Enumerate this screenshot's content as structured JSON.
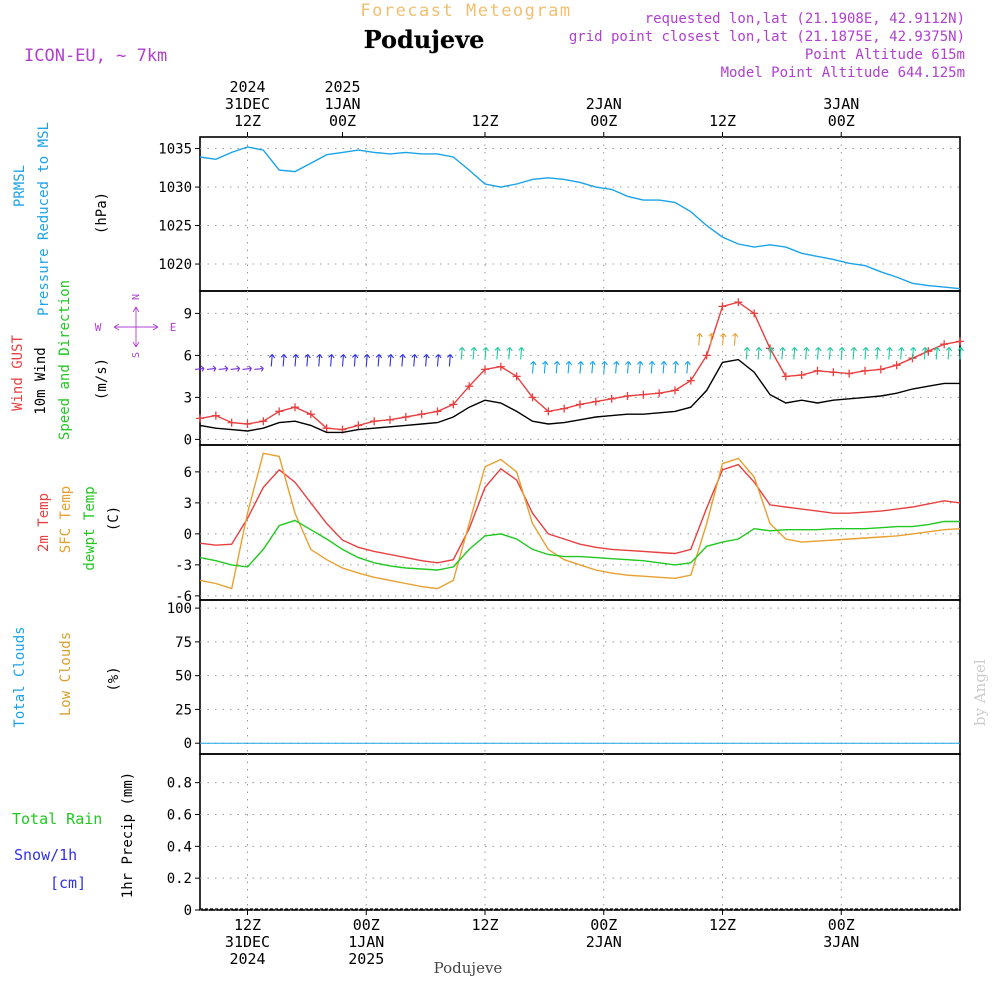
{
  "header": {
    "title_top": "Forecast Meteogram",
    "location": "Podujeve",
    "model": "ICON-EU, ~ 7km",
    "requested": "requested lon,lat (21.1908E, 42.9112N)",
    "gridpoint": "grid point closest lon,lat (21.1875E, 42.9375N)",
    "point_alt": "Point Altitude 615m",
    "model_alt": "Model Point Altitude 644.125m",
    "bottom_label": "Podujeve",
    "watermark": "by Angel"
  },
  "colors": {
    "pressure": "#1aa3e8",
    "gust": "#e84040",
    "wind": "#000000",
    "temp2m": "#e84040",
    "sfc": "#e8a030",
    "dewpt": "#20c820",
    "cloud_total": "#1aa3e8",
    "cloud_low": "#d8a030",
    "rain": "#20c820",
    "snow": "#3030e8",
    "purple": "#b040d0"
  },
  "time_axis": {
    "hours_range": [
      -6,
      90
    ],
    "top_labels": [
      {
        "h": 0,
        "lines": [
          "2024",
          "31DEC",
          "12Z"
        ]
      },
      {
        "h": 12,
        "lines": [
          "2025",
          "1JAN",
          "00Z"
        ]
      },
      {
        "h": 30,
        "lines": [
          "",
          "",
          "12Z"
        ]
      },
      {
        "h": 45,
        "lines": [
          "",
          "2JAN",
          "00Z"
        ]
      },
      {
        "h": 60,
        "lines": [
          "",
          "",
          "12Z"
        ]
      },
      {
        "h": 75,
        "lines": [
          "",
          "3JAN",
          "00Z"
        ]
      }
    ],
    "bottom_labels": [
      {
        "h": 0,
        "lines": [
          "12Z",
          "31DEC",
          "2024"
        ]
      },
      {
        "h": 15,
        "lines": [
          "00Z",
          "1JAN",
          "2025"
        ]
      },
      {
        "h": 30,
        "lines": [
          "12Z"
        ]
      },
      {
        "h": 45,
        "lines": [
          "00Z",
          "2JAN"
        ]
      },
      {
        "h": 60,
        "lines": [
          "12Z"
        ]
      },
      {
        "h": 75,
        "lines": [
          "00Z",
          "3JAN"
        ]
      }
    ]
  },
  "chart_data": [
    {
      "type": "line",
      "panel": "pressure",
      "ylabel_lines": [
        "PRMSL",
        "Pressure Reduced to MSL"
      ],
      "unit": "(hPa)",
      "ylim": [
        1016.5,
        1036.5
      ],
      "yticks": [
        1020,
        1025,
        1030,
        1035
      ],
      "grid": true,
      "series": [
        {
          "name": "PRMSL",
          "x": [
            -6,
            -4,
            -2,
            0,
            2,
            4,
            6,
            8,
            10,
            12,
            14,
            16,
            18,
            20,
            22,
            24,
            26,
            28,
            30,
            32,
            34,
            36,
            38,
            40,
            42,
            44,
            46,
            48,
            50,
            52,
            54,
            56,
            58,
            60,
            62,
            64,
            66,
            68,
            70,
            72,
            74,
            76,
            78,
            80,
            82,
            84,
            86,
            88,
            90
          ],
          "values": [
            1033.9,
            1033.6,
            1034.5,
            1035.2,
            1034.8,
            1032.2,
            1032.0,
            1033.1,
            1034.2,
            1034.5,
            1034.8,
            1034.5,
            1034.3,
            1034.5,
            1034.3,
            1034.3,
            1033.9,
            1032.2,
            1030.4,
            1030.0,
            1030.4,
            1031.0,
            1031.2,
            1031.0,
            1030.6,
            1030.0,
            1029.7,
            1028.8,
            1028.3,
            1028.3,
            1028.0,
            1026.8,
            1025.0,
            1023.5,
            1022.6,
            1022.2,
            1022.5,
            1022.2,
            1021.4,
            1021.0,
            1020.6,
            1020.1,
            1019.8,
            1019.0,
            1018.3,
            1017.5,
            1017.2,
            1017.0,
            1016.8
          ]
        }
      ]
    },
    {
      "type": "line",
      "panel": "wind",
      "ylabel_lines": [
        "Wind GUST",
        "10m Wind",
        "Speed and Direction"
      ],
      "unit": "(m/s)",
      "compass": {
        "n": "N",
        "s": "S",
        "w": "W",
        "e": "E"
      },
      "ylim": [
        -0.4,
        10.6
      ],
      "yticks": [
        0,
        3,
        6,
        9
      ],
      "grid": true,
      "series": [
        {
          "name": "Wind GUST",
          "x": [
            -6,
            -4,
            -2,
            0,
            2,
            4,
            6,
            8,
            10,
            12,
            14,
            16,
            18,
            20,
            22,
            24,
            26,
            28,
            30,
            32,
            34,
            36,
            38,
            40,
            42,
            44,
            46,
            48,
            50,
            52,
            54,
            56,
            58,
            60,
            62,
            64,
            66,
            68,
            70,
            72,
            74,
            76,
            78,
            80,
            82,
            84,
            86,
            88,
            90
          ],
          "values": [
            1.5,
            1.7,
            1.2,
            1.1,
            1.3,
            2.0,
            2.3,
            1.8,
            0.8,
            0.7,
            1.0,
            1.3,
            1.4,
            1.6,
            1.8,
            2.0,
            2.5,
            3.8,
            5.0,
            5.2,
            4.5,
            3.0,
            2.0,
            2.2,
            2.5,
            2.7,
            2.9,
            3.1,
            3.2,
            3.3,
            3.5,
            4.2,
            6.0,
            9.5,
            9.8,
            9.0,
            6.5,
            4.5,
            4.6,
            4.9,
            4.8,
            4.7,
            4.9,
            5.0,
            5.3,
            5.8,
            6.3,
            6.8,
            7.0
          ]
        },
        {
          "name": "10m Wind",
          "x": [
            -6,
            -4,
            -2,
            0,
            2,
            4,
            6,
            8,
            10,
            12,
            14,
            16,
            18,
            20,
            22,
            24,
            26,
            28,
            30,
            32,
            34,
            36,
            38,
            40,
            42,
            44,
            46,
            48,
            50,
            52,
            54,
            56,
            58,
            60,
            62,
            64,
            66,
            68,
            70,
            72,
            74,
            76,
            78,
            80,
            82,
            84,
            86,
            88,
            90
          ],
          "values": [
            1.0,
            0.8,
            0.7,
            0.6,
            0.8,
            1.2,
            1.3,
            1.0,
            0.5,
            0.5,
            0.7,
            0.8,
            0.9,
            1.0,
            1.1,
            1.2,
            1.6,
            2.3,
            2.8,
            2.6,
            2.0,
            1.3,
            1.1,
            1.2,
            1.4,
            1.6,
            1.7,
            1.8,
            1.8,
            1.9,
            2.0,
            2.3,
            3.5,
            5.5,
            5.7,
            4.8,
            3.2,
            2.6,
            2.8,
            2.6,
            2.8,
            2.9,
            3.0,
            3.1,
            3.3,
            3.6,
            3.8,
            4.0,
            4.0
          ]
        }
      ],
      "arrows": [
        {
          "speed_ms": 5.0,
          "color": "#7a30e0",
          "dir": "E"
        },
        {
          "speed_ms": 5.5,
          "color": "#3030e8",
          "dir": "N"
        },
        {
          "speed_ms": 5.0,
          "color": "#1aa3e8",
          "dir": "N"
        },
        {
          "speed_ms": 6.0,
          "color": "#20c8a0",
          "dir": "N"
        },
        {
          "speed_ms": 7.0,
          "color": "#e8a030",
          "dir": "N"
        }
      ]
    },
    {
      "type": "line",
      "panel": "temperature",
      "ylabel_lines": [
        "2m Temp",
        "SFC Temp",
        "dewpt Temp"
      ],
      "unit": "(C)",
      "ylim": [
        -6.4,
        8.6
      ],
      "yticks": [
        -6,
        -3,
        0,
        3,
        6
      ],
      "grid": true,
      "series": [
        {
          "name": "2m Temp",
          "x": [
            -6,
            -4,
            -2,
            0,
            2,
            4,
            6,
            8,
            10,
            12,
            14,
            16,
            18,
            20,
            22,
            24,
            26,
            28,
            30,
            32,
            34,
            36,
            38,
            40,
            42,
            44,
            46,
            48,
            50,
            52,
            54,
            56,
            58,
            60,
            62,
            64,
            66,
            68,
            70,
            72,
            74,
            76,
            78,
            80,
            82,
            84,
            86,
            88,
            90
          ],
          "values": [
            -0.9,
            -1.1,
            -1.0,
            1.5,
            4.5,
            6.2,
            5.0,
            3.0,
            1.0,
            -0.6,
            -1.3,
            -1.7,
            -2.0,
            -2.3,
            -2.6,
            -2.8,
            -2.5,
            0.5,
            4.5,
            6.3,
            5.2,
            2.0,
            0.0,
            -0.5,
            -1.0,
            -1.3,
            -1.5,
            -1.6,
            -1.7,
            -1.8,
            -1.9,
            -1.5,
            2.5,
            6.2,
            6.7,
            5.0,
            2.8,
            2.6,
            2.4,
            2.2,
            2.0,
            2.0,
            2.1,
            2.2,
            2.4,
            2.6,
            2.9,
            3.2,
            3.0
          ]
        },
        {
          "name": "SFC Temp",
          "x": [
            -6,
            -4,
            -2,
            0,
            2,
            4,
            6,
            8,
            10,
            12,
            14,
            16,
            18,
            20,
            22,
            24,
            26,
            28,
            30,
            32,
            34,
            36,
            38,
            40,
            42,
            44,
            46,
            48,
            50,
            52,
            54,
            56,
            58,
            60,
            62,
            64,
            66,
            68,
            70,
            72,
            74,
            76,
            78,
            80,
            82,
            84,
            86,
            88,
            90
          ],
          "values": [
            -4.5,
            -4.8,
            -5.3,
            2.0,
            7.8,
            7.5,
            2.0,
            -1.5,
            -2.5,
            -3.3,
            -3.8,
            -4.2,
            -4.5,
            -4.8,
            -5.1,
            -5.3,
            -4.5,
            1.0,
            6.5,
            7.2,
            6.0,
            1.0,
            -1.5,
            -2.5,
            -3.0,
            -3.5,
            -3.8,
            -4.0,
            -4.1,
            -4.2,
            -4.3,
            -4.0,
            1.0,
            6.8,
            7.3,
            5.5,
            1.0,
            -0.5,
            -0.8,
            -0.7,
            -0.6,
            -0.5,
            -0.4,
            -0.3,
            -0.2,
            0.0,
            0.2,
            0.4,
            0.5
          ]
        },
        {
          "name": "dewpt Temp",
          "x": [
            -6,
            -4,
            -2,
            0,
            2,
            4,
            6,
            8,
            10,
            12,
            14,
            16,
            18,
            20,
            22,
            24,
            26,
            28,
            30,
            32,
            34,
            36,
            38,
            40,
            42,
            44,
            46,
            48,
            50,
            52,
            54,
            56,
            58,
            60,
            62,
            64,
            66,
            68,
            70,
            72,
            74,
            76,
            78,
            80,
            82,
            84,
            86,
            88,
            90
          ],
          "values": [
            -2.3,
            -2.6,
            -3.0,
            -3.2,
            -1.5,
            0.8,
            1.3,
            0.4,
            -0.5,
            -1.5,
            -2.3,
            -2.8,
            -3.1,
            -3.3,
            -3.4,
            -3.5,
            -3.2,
            -1.5,
            -0.2,
            0.0,
            -0.5,
            -1.5,
            -2.0,
            -2.2,
            -2.2,
            -2.3,
            -2.4,
            -2.5,
            -2.6,
            -2.8,
            -3.0,
            -2.8,
            -1.2,
            -0.8,
            -0.5,
            0.5,
            0.3,
            0.4,
            0.4,
            0.4,
            0.5,
            0.5,
            0.5,
            0.6,
            0.7,
            0.7,
            0.9,
            1.2,
            1.2
          ]
        }
      ]
    },
    {
      "type": "bar",
      "panel": "clouds",
      "ylabel_lines": [
        "Total Clouds",
        "Low Clouds"
      ],
      "unit": "(%)",
      "ylim": [
        -8,
        106
      ],
      "yticks": [
        0,
        25,
        50,
        75,
        100
      ],
      "grid": true,
      "x": [
        -6,
        -5,
        -4,
        -3,
        -2,
        -1,
        0,
        1,
        2,
        3,
        4,
        5,
        6,
        7,
        8,
        9,
        10,
        11,
        12,
        13,
        14,
        15,
        16,
        17,
        18,
        19,
        20,
        21,
        22,
        23,
        24,
        25,
        26,
        27,
        28,
        29,
        30,
        31,
        32,
        33,
        34,
        35,
        36,
        37,
        38,
        39,
        40,
        41,
        42,
        43,
        44,
        45,
        46,
        47,
        48,
        49,
        50,
        51,
        52,
        53,
        54,
        55,
        56,
        57,
        58,
        59,
        60,
        61,
        62,
        63,
        64,
        65,
        66,
        67,
        68,
        69,
        70,
        71,
        72,
        73,
        74,
        75,
        76,
        77,
        78,
        79,
        80,
        81,
        82,
        83,
        84,
        85,
        86,
        87,
        88,
        89,
        90
      ],
      "series": [
        {
          "name": "Total Clouds",
          "values": [
            0,
            0,
            0,
            0,
            0,
            0,
            0,
            0,
            0,
            0,
            0,
            0,
            0,
            0,
            0,
            0,
            0,
            0,
            0,
            0,
            0,
            0,
            0,
            0,
            0,
            0,
            0,
            0,
            0,
            0,
            0,
            0,
            0,
            0,
            0,
            0,
            0,
            0,
            0,
            0,
            0,
            0,
            0,
            0,
            0,
            0,
            0,
            0,
            0,
            0,
            0,
            0,
            0,
            0,
            0,
            0,
            0,
            0,
            0,
            0,
            0,
            0,
            0,
            0,
            0,
            0,
            0,
            0,
            0,
            0,
            0,
            0,
            0,
            0,
            0,
            0,
            0,
            0,
            0,
            0,
            0,
            0,
            0,
            0,
            0,
            0,
            0,
            0,
            0,
            0,
            0,
            0,
            0,
            0,
            0,
            0,
            0
          ]
        },
        {
          "name": "Low Clouds",
          "values": [
            0,
            0,
            0,
            0,
            0,
            0,
            0,
            0,
            0,
            0,
            0,
            0,
            0,
            0,
            0,
            0,
            0,
            0,
            0,
            0,
            0,
            0,
            0,
            0,
            0,
            0,
            0,
            0,
            0,
            0,
            0,
            0,
            0,
            0,
            0,
            0,
            0,
            0,
            0,
            0,
            0,
            0,
            0,
            0,
            0,
            0,
            0,
            0,
            0,
            0,
            0,
            0,
            0,
            0,
            0,
            0,
            0,
            0,
            0,
            0,
            0,
            0,
            0,
            0,
            0,
            0,
            0,
            0,
            0,
            0,
            0,
            0,
            0,
            0,
            0,
            0,
            0,
            0,
            0,
            0,
            0,
            0,
            0,
            0,
            0,
            0,
            0,
            0,
            0,
            0,
            0,
            0,
            0,
            0,
            0,
            0,
            0
          ]
        }
      ]
    },
    {
      "type": "bar",
      "panel": "precip",
      "ylabel_lines": [
        "1hr Precip (mm)"
      ],
      "left_labels": [
        "Total  Rain",
        "Snow/1h",
        "[cm]"
      ],
      "ylim": [
        0,
        0.98
      ],
      "yticks": [
        0,
        0.2,
        0.4,
        0.6,
        0.8
      ],
      "grid": true,
      "series": [
        {
          "name": "Total Rain",
          "values": []
        },
        {
          "name": "Snow/1h",
          "values": []
        }
      ]
    }
  ]
}
